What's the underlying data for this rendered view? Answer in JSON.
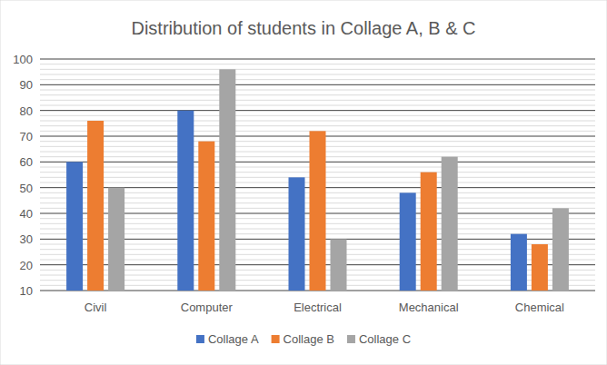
{
  "chart_data": {
    "type": "bar",
    "title": "Distribution of students in Collage A, B & C",
    "categories": [
      "Civil",
      "Computer",
      "Electrical",
      "Mechanical",
      "Chemical"
    ],
    "series": [
      {
        "name": "Collage A",
        "color": "#4472c4",
        "values": [
          60,
          80,
          54,
          48,
          32
        ]
      },
      {
        "name": "Collage B",
        "color": "#ed7d31",
        "values": [
          76,
          68,
          72,
          56,
          28
        ]
      },
      {
        "name": "Collage C",
        "color": "#a5a5a5",
        "values": [
          50,
          96,
          30,
          62,
          42
        ]
      }
    ],
    "ylim": [
      10,
      100
    ],
    "yticks": [
      10,
      20,
      30,
      40,
      50,
      60,
      70,
      80,
      90,
      100
    ],
    "grid": true,
    "legend": "bottom"
  }
}
